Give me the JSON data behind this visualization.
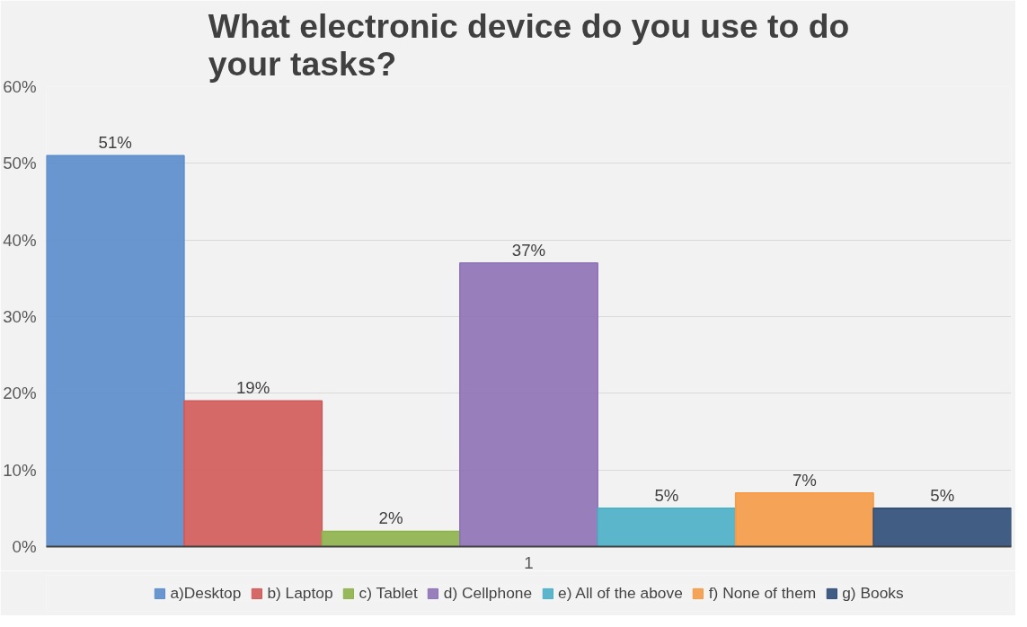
{
  "chart_data": {
    "type": "bar",
    "title": "What electronic device do you use to do\nyour tasks?",
    "categories": [
      "1"
    ],
    "series": [
      {
        "name": "a)Desktop",
        "color": "#5b8ccc",
        "values": [
          51
        ],
        "value_labels": [
          "51%"
        ]
      },
      {
        "name": "b) Laptop",
        "color": "#d05a58",
        "values": [
          19
        ],
        "value_labels": [
          "19%"
        ]
      },
      {
        "name": "c) Tablet",
        "color": "#8db34a",
        "values": [
          2
        ],
        "value_labels": [
          "2%"
        ]
      },
      {
        "name": "d) Cellphone",
        "color": "#8e72b6",
        "values": [
          37
        ],
        "value_labels": [
          "37%"
        ]
      },
      {
        "name": "e) All of the above",
        "color": "#4bafc6",
        "values": [
          5
        ],
        "value_labels": [
          "5%"
        ]
      },
      {
        "name": "f) None of them",
        "color": "#f59a45",
        "values": [
          7
        ],
        "value_labels": [
          "7%"
        ]
      },
      {
        "name": "g) Books",
        "color": "#2f4d77",
        "values": [
          5
        ],
        "value_labels": [
          "5%"
        ]
      }
    ],
    "ylim": [
      0,
      60
    ],
    "yticks": [
      {
        "value": 0,
        "label": "0%"
      },
      {
        "value": 10,
        "label": "10%"
      },
      {
        "value": 20,
        "label": "20%"
      },
      {
        "value": 30,
        "label": "30%"
      },
      {
        "value": 40,
        "label": "40%"
      },
      {
        "value": 50,
        "label": "50%"
      },
      {
        "value": 60,
        "label": "60%"
      }
    ],
    "grid": "y",
    "legend": "bottom"
  }
}
